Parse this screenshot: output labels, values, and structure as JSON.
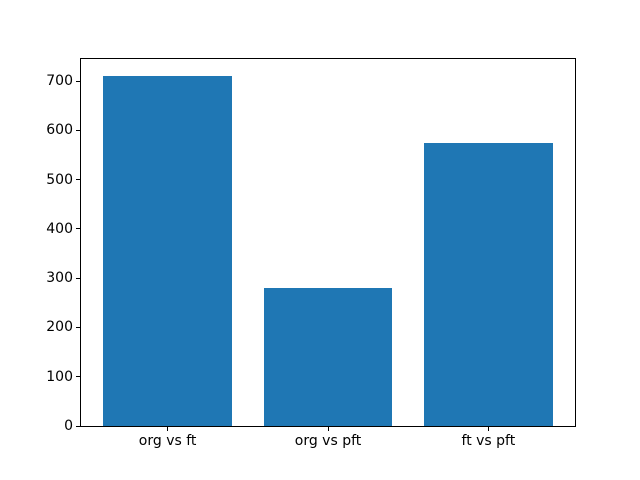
{
  "chart_data": {
    "type": "bar",
    "categories": [
      "org vs ft",
      "org vs pft",
      "ft vs pft"
    ],
    "values": [
      710,
      280,
      575
    ],
    "title": "",
    "xlabel": "",
    "ylabel": "",
    "ylim": [
      0,
      745
    ],
    "xlim": [
      -0.54,
      2.54
    ],
    "yticks": [
      0,
      100,
      200,
      300,
      400,
      500,
      600,
      700
    ],
    "bar_width_units": 0.8,
    "bar_color": "#1f77b4",
    "spine_color": "#000000",
    "background_color": "#ffffff",
    "grid": "off",
    "legend": "none"
  }
}
